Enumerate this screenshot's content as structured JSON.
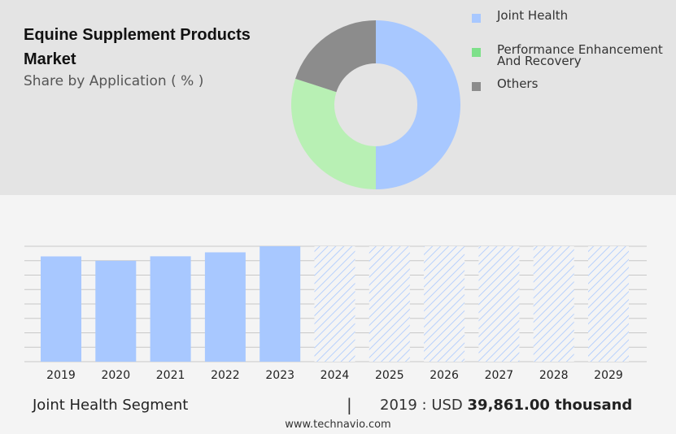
{
  "header": {
    "title": "Equine Supplement Products Market",
    "subtitle": "Share by Application ( % )"
  },
  "legend": [
    {
      "label": "Joint Health",
      "color": "#a8c8ff"
    },
    {
      "label": "Performance Enhancement And Recovery",
      "color": "#7ee08a"
    },
    {
      "label": "Others",
      "color": "#8c8c8c"
    }
  ],
  "chart_data": [
    {
      "type": "pie",
      "variant": "donut",
      "title": "Share by Application ( % )",
      "categories": [
        "Joint Health",
        "Performance Enhancement And Recovery",
        "Others"
      ],
      "values": [
        50,
        30,
        20
      ],
      "colors": [
        "#a8c8ff",
        "#b8f0b4",
        "#8c8c8c"
      ]
    },
    {
      "type": "bar",
      "categories": [
        "2019",
        "2020",
        "2021",
        "2022",
        "2023",
        "2024",
        "2025",
        "2026",
        "2027",
        "2028",
        "2029"
      ],
      "values": [
        39861,
        38200,
        39900,
        41400,
        43700,
        null,
        null,
        null,
        null,
        null,
        null
      ],
      "forecast_categories": [
        "2024",
        "2025",
        "2026",
        "2027",
        "2028",
        "2029"
      ],
      "ylim": [
        0,
        43700
      ],
      "grid": true,
      "bar_color": "#a8c8ff",
      "forecast_style": "hatched"
    }
  ],
  "footer": {
    "segment": "Joint Health Segment",
    "divider": "|",
    "value_prefix": "2019 : USD",
    "value": "39,861.00 thousand",
    "url": "www.technavio.com"
  }
}
